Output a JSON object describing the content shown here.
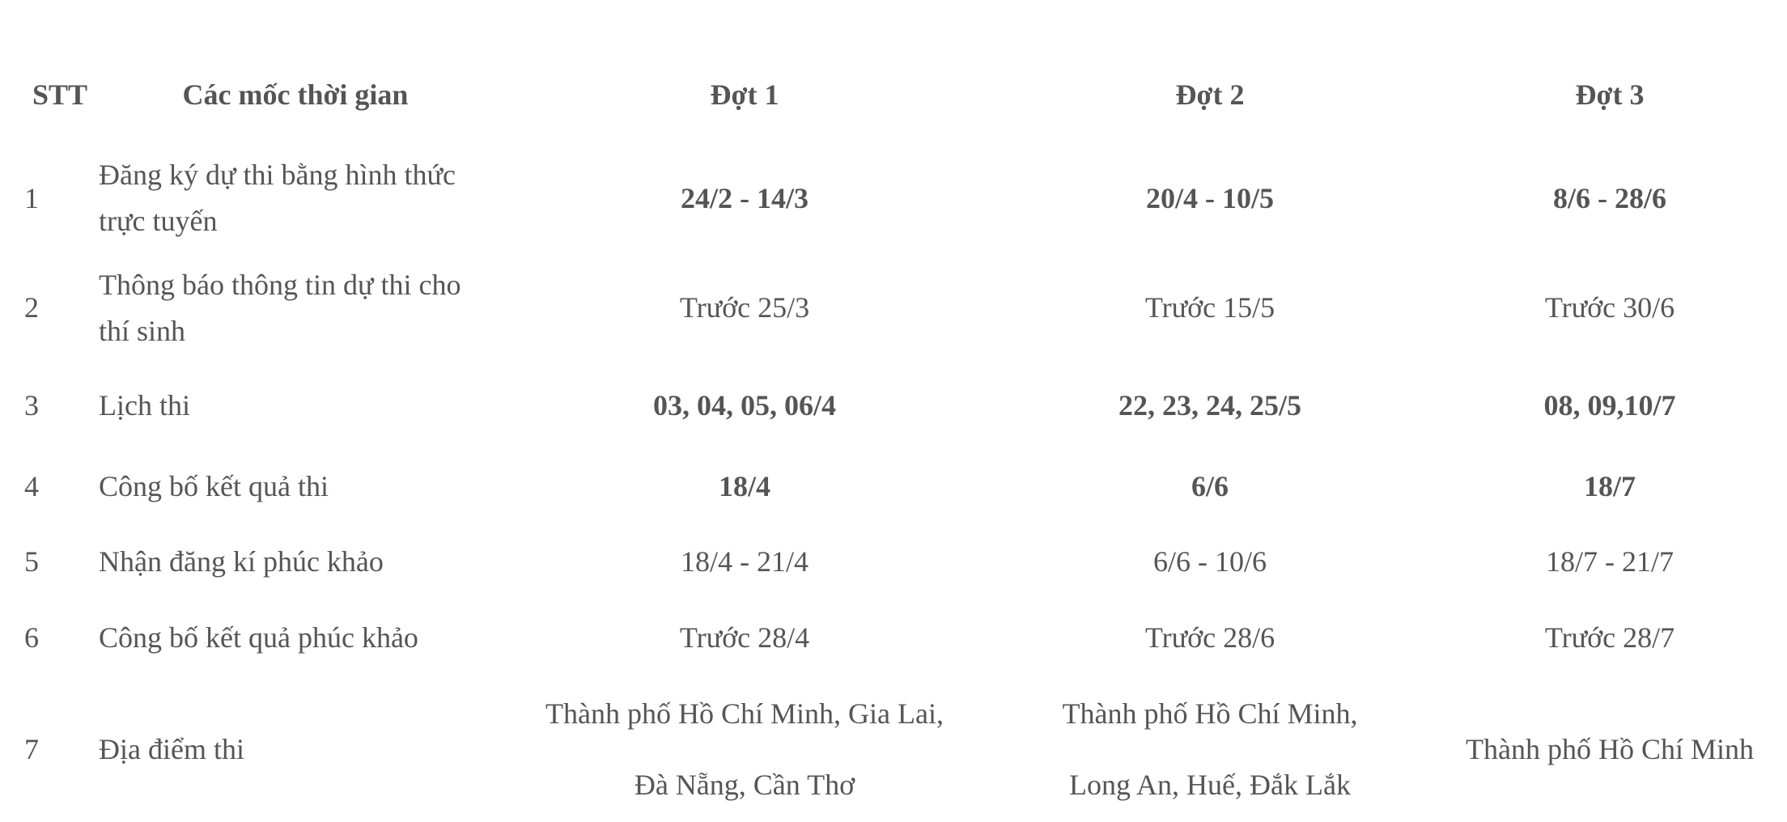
{
  "table": {
    "headers": [
      "STT",
      "Các mốc thời gian",
      "Đợt 1",
      "Đợt 2",
      "Đợt 3"
    ],
    "rows": [
      {
        "stt": "1",
        "milestone": "Đăng ký dự thi bằng hình thức trực tuyến",
        "dot1": "24/2 - 14/3",
        "dot2": "20/4 - 10/5",
        "dot3": "8/6 - 28/6"
      },
      {
        "stt": "2",
        "milestone": "Thông báo thông tin dự thi cho thí sinh",
        "dot1": "Trước 25/3",
        "dot2": "Trước 15/5",
        "dot3": "Trước 30/6"
      },
      {
        "stt": "3",
        "milestone": "Lịch thi",
        "dot1": "03, 04, 05, 06/4",
        "dot2": "22, 23, 24, 25/5",
        "dot3": "08, 09,10/7"
      },
      {
        "stt": "4",
        "milestone": "Công bố kết quả thi",
        "dot1": "18/4",
        "dot2": "6/6",
        "dot3": "18/7"
      },
      {
        "stt": "5",
        "milestone": "Nhận đăng kí phúc khảo",
        "dot1": "18/4 - 21/4",
        "dot2": "6/6 - 10/6",
        "dot3": "18/7 - 21/7"
      },
      {
        "stt": "6",
        "milestone": "Công bố kết quả phúc khảo",
        "dot1": "Trước 28/4",
        "dot2": "Trước 28/6",
        "dot3": "Trước 28/7"
      },
      {
        "stt": "7",
        "milestone": "Địa điểm thi",
        "dot1": "Thành phố Hồ Chí Minh, Gia Lai, Đà Nẵng, Cần Thơ",
        "dot2": "Thành phố Hồ Chí Minh, Long An, Huế, Đắk Lắk",
        "dot3": "Thành phố Hồ Chí Minh"
      }
    ]
  }
}
